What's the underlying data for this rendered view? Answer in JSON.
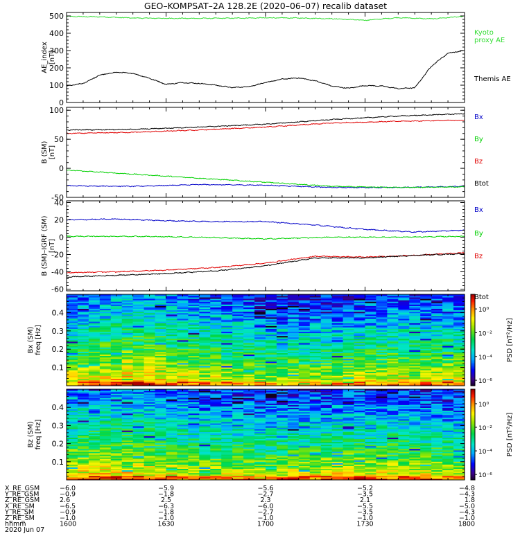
{
  "title": "GEO–KOMPSAT–2A 128.2E (2020–06–07) recalib dataset",
  "colors": {
    "axis": "#000000",
    "black": "#000000",
    "red": "#e00000",
    "green": "#00d000",
    "blue": "#0000c8",
    "kyoto_green": "#33dd33"
  },
  "chart_data": [
    {
      "name": "ae-index-panel",
      "type": "line",
      "ylabel": [
        "AE_index",
        "[nT]"
      ],
      "ylim": [
        0,
        520
      ],
      "yticks": [
        0,
        100,
        200,
        300,
        400,
        500
      ],
      "time_range_hhmm": [
        "1600",
        "1800"
      ],
      "series": [
        {
          "name": "Kyoto\nproxy AE",
          "color": "#33dd33",
          "t_min": [
            0,
            10,
            20,
            30,
            40,
            50,
            60,
            70,
            80,
            90,
            100,
            110,
            120
          ],
          "values": [
            497,
            495,
            488,
            486,
            486,
            487,
            489,
            488,
            484,
            475,
            490,
            483,
            498
          ]
        },
        {
          "name": "Themis AE",
          "color": "#000000",
          "t_min": [
            0,
            5,
            10,
            15,
            20,
            25,
            30,
            35,
            40,
            45,
            50,
            55,
            60,
            65,
            70,
            75,
            80,
            85,
            90,
            95,
            100,
            105,
            110,
            115,
            120
          ],
          "values": [
            95,
            110,
            158,
            175,
            168,
            140,
            105,
            115,
            110,
            100,
            86,
            92,
            115,
            135,
            142,
            125,
            95,
            82,
            98,
            95,
            80,
            85,
            210,
            285,
            300
          ]
        }
      ]
    },
    {
      "name": "b-sm-panel",
      "type": "line",
      "ylabel": [
        "B (SM)",
        "[nT]"
      ],
      "ylim": [
        -50,
        105
      ],
      "yticks": [
        -50,
        0,
        50,
        100
      ],
      "series": [
        {
          "name": "Bx",
          "color": "#0000c8",
          "t_min": [
            0,
            20,
            40,
            60,
            80,
            100,
            120
          ],
          "values": [
            -30,
            -31,
            -28,
            -29,
            -33,
            -33,
            -31
          ]
        },
        {
          "name": "By",
          "color": "#00d000",
          "t_min": [
            0,
            20,
            40,
            60,
            80,
            100,
            120
          ],
          "values": [
            -3,
            -10,
            -17,
            -24,
            -31,
            -33,
            -32
          ]
        },
        {
          "name": "Bz",
          "color": "#e00000",
          "t_min": [
            0,
            20,
            40,
            60,
            80,
            100,
            120
          ],
          "values": [
            60,
            62,
            66,
            71,
            78,
            81,
            83
          ]
        },
        {
          "name": "Btot",
          "color": "#000000",
          "t_min": [
            0,
            20,
            40,
            60,
            80,
            100,
            120
          ],
          "values": [
            66,
            67,
            71,
            76,
            84,
            90,
            94
          ]
        }
      ]
    },
    {
      "name": "b-igrf-panel",
      "type": "line",
      "ylabel": [
        "B (SM)–IGRF (SM)",
        "[nT]"
      ],
      "ylim": [
        -62,
        42
      ],
      "yticks": [
        -60,
        -40,
        -20,
        0,
        20,
        40
      ],
      "series": [
        {
          "name": "Bx",
          "color": "#0000c8",
          "t_min": [
            0,
            15,
            30,
            45,
            60,
            75,
            90,
            105,
            120
          ],
          "values": [
            20,
            21,
            19,
            18,
            18,
            14,
            9,
            6,
            8
          ]
        },
        {
          "name": "By",
          "color": "#00d000",
          "t_min": [
            0,
            20,
            40,
            60,
            80,
            100,
            120
          ],
          "values": [
            1,
            1,
            0,
            -2,
            0,
            0,
            1
          ]
        },
        {
          "name": "Bz",
          "color": "#e00000",
          "t_min": [
            0,
            15,
            30,
            45,
            60,
            75,
            90,
            105,
            120
          ],
          "values": [
            -41,
            -40,
            -38,
            -35,
            -30,
            -22,
            -23,
            -21,
            -18
          ]
        },
        {
          "name": "Btot",
          "color": "#000000",
          "t_min": [
            0,
            15,
            30,
            45,
            60,
            75,
            90,
            105,
            120
          ],
          "values": [
            -46,
            -44,
            -42,
            -39,
            -33,
            -24,
            -24,
            -21,
            -19
          ]
        }
      ]
    },
    {
      "name": "bx-spectrogram",
      "type": "heatmap",
      "ylabel": [
        "Bx (SM)",
        "freq [Hz]"
      ],
      "ylim": [
        0,
        0.5
      ],
      "yticks": [
        0.1,
        0.2,
        0.3,
        0.4
      ],
      "colorbar": {
        "label": "PSD [nT²/Hz]",
        "ticks": [
          "10⁰",
          "10⁻²",
          "10⁻⁴",
          "10⁻⁶"
        ]
      }
    },
    {
      "name": "bz-spectrogram",
      "type": "heatmap",
      "ylabel": [
        "Bz (SM)",
        "freq [Hz]"
      ],
      "ylim": [
        0,
        0.5
      ],
      "yticks": [
        0.1,
        0.2,
        0.3,
        0.4
      ],
      "colorbar": {
        "label": "PSD [nT²/Hz]",
        "ticks": [
          "10⁰",
          "10⁻²",
          "10⁻⁴",
          "10⁻⁶"
        ]
      }
    }
  ],
  "ephemeris": {
    "rows": [
      {
        "label": "X_RE_GSM",
        "values": [
          "−6.0",
          "−5.9",
          "−5.6",
          "−5.2",
          "−4.8"
        ]
      },
      {
        "label": "Y_RE_GSM",
        "values": [
          "−0.9",
          "−1.8",
          "−2.7",
          "−3.5",
          "−4.3"
        ]
      },
      {
        "label": "Z_RE_GSM",
        "values": [
          "2.6",
          "2.5",
          "2.3",
          "2.1",
          "1.8"
        ]
      },
      {
        "label": "X_RE_SM",
        "values": [
          "−6.5",
          "−6.3",
          "−6.0",
          "−5.5",
          "−5.0"
        ]
      },
      {
        "label": "Y_RE_SM",
        "values": [
          "−0.9",
          "−1.8",
          "−2.7",
          "−3.5",
          "−4.3"
        ]
      },
      {
        "label": "Z_RE_SM",
        "values": [
          "−1.0",
          "−1.0",
          "−1.0",
          "−1.0",
          "−1.0"
        ]
      },
      {
        "label": "hhmm",
        "values": [
          "1600",
          "1630",
          "1700",
          "1730",
          "1800"
        ]
      }
    ],
    "date": "2020 Jun 07"
  }
}
